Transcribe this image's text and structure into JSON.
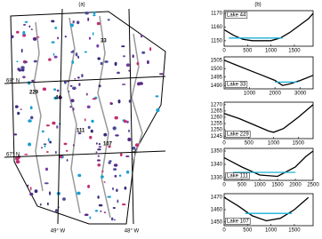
{
  "map": {
    "title": "(a)",
    "lat_labels": [
      "68° N",
      "67° N"
    ],
    "lon_labels": [
      "49° W",
      "48° W"
    ],
    "lake_labels": [
      "33",
      "229",
      "44",
      "111",
      "107"
    ]
  },
  "panel_b_title": "(b)",
  "chart_data": [
    {
      "type": "line",
      "label": "Lake 44",
      "label_corner": "upper left",
      "xlim": [
        0,
        1900
      ],
      "xticks": [
        0,
        500,
        1000,
        1500
      ],
      "ylim": [
        1146,
        1172
      ],
      "yticks": [
        1150,
        1160,
        1170
      ],
      "series": [
        {
          "color": "#000000",
          "x": [
            0,
            200,
            400,
            600,
            800,
            1000,
            1200,
            1400,
            1600,
            1800,
            1900
          ],
          "values": [
            1158,
            1154,
            1151,
            1150,
            1150,
            1150,
            1152,
            1156,
            1161,
            1166,
            1170
          ]
        },
        {
          "color": "#1ab0d8",
          "x": [
            100,
            1250
          ],
          "values": [
            1152,
            1152
          ]
        }
      ]
    },
    {
      "type": "line",
      "label": "Lake 33",
      "label_corner": "lower left",
      "xlim": [
        0,
        3500
      ],
      "xticks": [
        1000,
        2000,
        3000
      ],
      "ylim": [
        1488,
        1507
      ],
      "yticks": [
        1490,
        1495,
        1500,
        1505
      ],
      "series": [
        {
          "color": "#000000",
          "x": [
            0,
            500,
            1000,
            1500,
            2000,
            2300,
            2600,
            3000,
            3500
          ],
          "values": [
            1505,
            1502,
            1499,
            1496,
            1493,
            1490,
            1491,
            1493,
            1496
          ]
        },
        {
          "color": "#1ab0d8",
          "x": [
            2000,
            2900
          ],
          "values": [
            1492,
            1492
          ]
        }
      ]
    },
    {
      "type": "line",
      "label": "Lake 229",
      "label_corner": "lower left",
      "xlim": [
        0,
        1800
      ],
      "xticks": [
        0,
        500,
        1000,
        1500
      ],
      "ylim": [
        1243,
        1272
      ],
      "yticks": [
        1245,
        1250,
        1255,
        1260,
        1265,
        1270
      ],
      "series": [
        {
          "color": "#000000",
          "x": [
            0,
            300,
            600,
            900,
            1000,
            1200,
            1500,
            1800
          ],
          "values": [
            1263,
            1259,
            1254,
            1249,
            1248,
            1251,
            1260,
            1270
          ]
        }
      ]
    },
    {
      "type": "line",
      "label": "Lake 111",
      "label_corner": "lower left",
      "xlim": [
        0,
        2500
      ],
      "xticks": [
        0,
        500,
        1000,
        1500,
        2000,
        2500
      ],
      "ylim": [
        1328,
        1352
      ],
      "yticks": [
        1330,
        1340,
        1350
      ],
      "series": [
        {
          "color": "#000000",
          "x": [
            0,
            500,
            1000,
            1500,
            2000,
            2300,
            2500
          ],
          "values": [
            1345,
            1338,
            1332,
            1331,
            1338,
            1346,
            1350
          ]
        },
        {
          "color": "#1ab0d8",
          "x": [
            250,
            2000
          ],
          "values": [
            1334,
            1334
          ]
        }
      ]
    },
    {
      "type": "line",
      "label": "Lake 107",
      "label_corner": "lower left",
      "xlim": [
        0,
        1900
      ],
      "xticks": [
        0,
        500,
        1000,
        1500
      ],
      "ylim": [
        1447,
        1473
      ],
      "yticks": [
        1450,
        1460,
        1470
      ],
      "series": [
        {
          "color": "#000000",
          "x": [
            0,
            300,
            600,
            900,
            1200,
            1500,
            1800
          ],
          "values": [
            1470,
            1463,
            1455,
            1451,
            1453,
            1460,
            1470
          ]
        },
        {
          "color": "#1ab0d8",
          "x": [
            450,
            1450
          ],
          "values": [
            1457,
            1457
          ]
        }
      ]
    }
  ]
}
